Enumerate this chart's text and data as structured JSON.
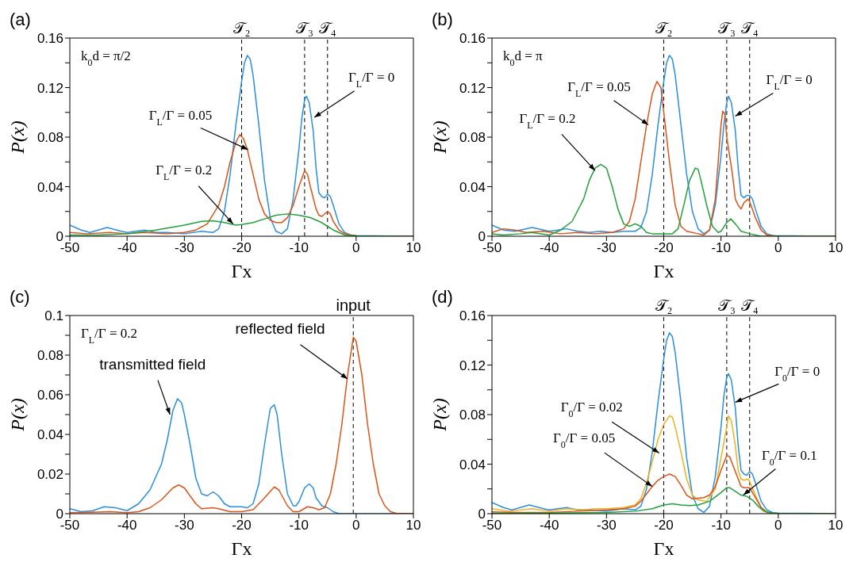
{
  "chart_data": [
    {
      "type": "line",
      "title": "(a)",
      "xlabel": "Γx",
      "ylabel": "P(x)",
      "xlim": [
        -50,
        10
      ],
      "xticks": [
        -50,
        -40,
        -30,
        -20,
        -10,
        0,
        10
      ],
      "ylim": [
        0,
        0.16
      ],
      "yticks": [
        0,
        {
          "value": 0.02,
          "label": null
        },
        0.04,
        {
          "value": 0.06,
          "label": null
        },
        0.08,
        {
          "value": 0.1,
          "label": null
        },
        0.12,
        {
          "value": 0.14,
          "label": null
        },
        0.16
      ],
      "ref_lines": [
        {
          "axis": "x",
          "value": -20,
          "label": "𝒯₂",
          "line_style": "dashed",
          "color": "#000000"
        },
        {
          "axis": "x",
          "value": -9,
          "label": "𝒯₃",
          "line_style": "dashed",
          "color": "#000000"
        },
        {
          "axis": "x",
          "value": -5,
          "label": "𝒯₄",
          "line_style": "dashed",
          "color": "#000000"
        }
      ],
      "annotations": [
        "k$_{0}$d = π/2",
        {
          "text": "Γ$_{L}$/Γ = 0",
          "x": -7.3,
          "y": 0.096
        },
        {
          "text": "Γ$_{L}$/Γ = 0.05",
          "x": -18.9,
          "y": 0.07
        },
        {
          "text": "Γ$_{L}$/Γ = 0.2",
          "x": -21.5,
          "y": 0.01
        }
      ],
      "series": [
        {
          "color": "#2b8ee0",
          "x": [
            -50,
            -48,
            -46.5,
            -43.5,
            -41,
            -40,
            -37,
            -35,
            -33,
            -30,
            -27,
            -25,
            -24,
            -23,
            -22,
            -21,
            -20,
            -19.5,
            -19,
            -18.5,
            -18,
            -17,
            -16,
            -15,
            -14,
            -13,
            -12,
            -11,
            -10,
            -9.5,
            -9,
            -8.7,
            -8.2,
            -7.5,
            -7,
            -6.5,
            -6,
            -5.5,
            -5,
            -4.5,
            -4,
            -3,
            -2,
            -1,
            0,
            10
          ],
          "values": [
            0.009,
            0.005,
            0.003,
            0.007,
            0.004,
            0.003,
            0.005,
            0.003,
            0.003,
            0.002,
            0.004,
            0.003,
            0.006,
            0.02,
            0.05,
            0.09,
            0.125,
            0.14,
            0.146,
            0.143,
            0.13,
            0.09,
            0.045,
            0.015,
            0.004,
            0.002,
            0.006,
            0.03,
            0.07,
            0.095,
            0.11,
            0.113,
            0.108,
            0.085,
            0.055,
            0.035,
            0.032,
            0.031,
            0.034,
            0.032,
            0.025,
            0.01,
            0.003,
            0.001,
            0.0005,
            0
          ]
        },
        {
          "color": "#d9541a",
          "x": [
            -50,
            -47,
            -43,
            -40,
            -37,
            -33,
            -30,
            -28,
            -26,
            -24,
            -23,
            -22,
            -21,
            -20.3,
            -19.7,
            -19,
            -18,
            -17,
            -16,
            -15,
            -14,
            -13,
            -12,
            -11,
            -10,
            -9,
            -8.5,
            -8,
            -7,
            -6.5,
            -6,
            -5,
            -4.5,
            -4,
            -3,
            -2,
            0,
            10
          ],
          "values": [
            0.003,
            0.002,
            0.003,
            0.002,
            0.003,
            0.002,
            0.003,
            0.005,
            0.01,
            0.025,
            0.04,
            0.06,
            0.076,
            0.082,
            0.079,
            0.07,
            0.05,
            0.03,
            0.018,
            0.013,
            0.011,
            0.011,
            0.015,
            0.025,
            0.04,
            0.053,
            0.05,
            0.04,
            0.022,
            0.017,
            0.016,
            0.02,
            0.018,
            0.012,
            0.005,
            0.002,
            0.0003,
            0
          ]
        },
        {
          "color": "#23a03a",
          "x": [
            -50,
            -45,
            -40,
            -35,
            -30,
            -27,
            -25,
            -23,
            -21,
            -20,
            -18,
            -16,
            -14,
            -12,
            -10,
            -8,
            -6,
            -5,
            -4,
            -3,
            -2,
            0,
            10
          ],
          "values": [
            0.001,
            0.001,
            0.002,
            0.005,
            0.009,
            0.012,
            0.0125,
            0.011,
            0.009,
            0.0095,
            0.011,
            0.014,
            0.017,
            0.018,
            0.017,
            0.015,
            0.011,
            0.008,
            0.005,
            0.003,
            0.001,
            0.0003,
            0
          ]
        }
      ]
    },
    {
      "type": "line",
      "title": "(b)",
      "xlabel": "Γx",
      "ylabel": "P(x)",
      "xlim": [
        -50,
        10
      ],
      "xticks": [
        -50,
        -40,
        -30,
        -20,
        -10,
        0,
        10
      ],
      "ylim": [
        0,
        0.16
      ],
      "yticks": [
        0,
        {
          "value": 0.02,
          "label": null
        },
        0.04,
        {
          "value": 0.06,
          "label": null
        },
        0.08,
        {
          "value": 0.1,
          "label": null
        },
        0.12,
        {
          "value": 0.14,
          "label": null
        },
        0.16
      ],
      "ref_lines": [
        {
          "axis": "x",
          "value": -20,
          "label": "𝒯₂",
          "line_style": "dashed",
          "color": "#000000"
        },
        {
          "axis": "x",
          "value": -9,
          "label": "𝒯₃",
          "line_style": "dashed",
          "color": "#000000"
        },
        {
          "axis": "x",
          "value": -5,
          "label": "𝒯₄",
          "line_style": "dashed",
          "color": "#000000"
        }
      ],
      "annotations": [
        "k$_{0}$d = π",
        {
          "text": "Γ$_{L}$/Γ = 0",
          "x": -7.5,
          "y": 0.097
        },
        {
          "text": "Γ$_{L}$/Γ = 0.05",
          "x": -22.7,
          "y": 0.09
        },
        {
          "text": "Γ$_{L}$/Γ = 0.2",
          "x": -32,
          "y": 0.053
        }
      ],
      "series": [
        {
          "color": "#2b8ee0",
          "x": [
            -50,
            -48,
            -46,
            -43,
            -40,
            -37,
            -35,
            -33,
            -31,
            -29,
            -27,
            -25,
            -24,
            -23,
            -22,
            -21,
            -20,
            -19.5,
            -19,
            -18.5,
            -18,
            -17,
            -16,
            -15,
            -14,
            -13,
            -12,
            -11,
            -10,
            -9.5,
            -9,
            -8.7,
            -8.2,
            -7.5,
            -7,
            -6.5,
            -6,
            -5.5,
            -5,
            -4.5,
            -4,
            -3,
            -2,
            -1,
            10
          ],
          "values": [
            0.009,
            0.005,
            0.004,
            0.007,
            0.004,
            0.006,
            0.004,
            0.003,
            0.004,
            0.003,
            0.004,
            0.004,
            0.007,
            0.02,
            0.05,
            0.09,
            0.125,
            0.14,
            0.146,
            0.143,
            0.13,
            0.09,
            0.05,
            0.02,
            0.006,
            0.002,
            0.005,
            0.025,
            0.065,
            0.09,
            0.108,
            0.113,
            0.108,
            0.085,
            0.055,
            0.033,
            0.031,
            0.033,
            0.033,
            0.03,
            0.022,
            0.008,
            0.002,
            0.0005,
            0
          ]
        },
        {
          "color": "#d9541a",
          "x": [
            -50,
            -48,
            -46,
            -44,
            -41,
            -38,
            -35,
            -32,
            -29,
            -27,
            -26,
            -25,
            -24,
            -23,
            -22,
            -21.2,
            -20.5,
            -20,
            -19,
            -18,
            -17,
            -16,
            -14,
            -13,
            -12,
            -11,
            -10.5,
            -10,
            -9.7,
            -9.3,
            -9,
            -8,
            -7.5,
            -7,
            -6.5,
            -6,
            -5.3,
            -5,
            -4,
            -3,
            -2,
            0,
            10
          ],
          "values": [
            0.003,
            0.006,
            0.005,
            0.003,
            0.004,
            0.002,
            0.003,
            0.002,
            0.003,
            0.006,
            0.012,
            0.03,
            0.06,
            0.09,
            0.115,
            0.125,
            0.12,
            0.1,
            0.06,
            0.025,
            0.008,
            0.004,
            0.002,
            0.001,
            0.005,
            0.03,
            0.06,
            0.09,
            0.101,
            0.098,
            0.08,
            0.05,
            0.03,
            0.025,
            0.022,
            0.027,
            0.03,
            0.028,
            0.015,
            0.005,
            0.001,
            0,
            0
          ]
        },
        {
          "color": "#23a03a",
          "x": [
            -50,
            -48,
            -45,
            -43,
            -40,
            -38,
            -36,
            -34,
            -33,
            -32,
            -31,
            -30,
            -29,
            -28,
            -27,
            -26,
            -25,
            -24,
            -23,
            -22,
            -20,
            -18.5,
            -17.5,
            -16.5,
            -15.5,
            -14.5,
            -14,
            -13.5,
            -12.5,
            -11.5,
            -10.5,
            -10,
            -9,
            -8.3,
            -7.5,
            -6.5,
            -5,
            -4,
            -3,
            10
          ],
          "values": [
            0.002,
            0.001,
            0.002,
            0.003,
            0.001,
            0.005,
            0.012,
            0.03,
            0.045,
            0.055,
            0.058,
            0.055,
            0.04,
            0.022,
            0.01,
            0.008,
            0.01,
            0.008,
            0.003,
            0.002,
            0.002,
            0.002,
            0.006,
            0.025,
            0.045,
            0.055,
            0.054,
            0.045,
            0.025,
            0.008,
            0.003,
            0.004,
            0.011,
            0.014,
            0.01,
            0.004,
            0.002,
            0.001,
            0,
            0
          ]
        }
      ]
    },
    {
      "type": "line",
      "title": "(c)",
      "xlabel": "Γx",
      "ylabel": "P(x)",
      "xlim": [
        -50,
        10
      ],
      "xticks": [
        -50,
        -40,
        -30,
        -20,
        -10,
        0,
        10
      ],
      "ylim": [
        0,
        0.1
      ],
      "yticks": [
        0,
        {
          "value": 0.01,
          "label": null
        },
        0.02,
        {
          "value": 0.03,
          "label": null
        },
        0.04,
        {
          "value": 0.05,
          "label": null
        },
        0.06,
        {
          "value": 0.07,
          "label": null
        },
        0.08,
        {
          "value": 0.09,
          "label": null
        },
        0.1
      ],
      "ref_lines": [
        {
          "axis": "x",
          "value": -0.5,
          "label": "input",
          "line_style": "dashed",
          "color": "#000000"
        }
      ],
      "annotations": [
        "Γ$_{L}$/Γ = 0.2",
        {
          "text": "transmitted field",
          "x": -32.5,
          "y": 0.05
        },
        {
          "text": "reflected field",
          "x": -1.5,
          "y": 0.068
        }
      ],
      "series": [
        {
          "color": "#2b8ee0",
          "x": [
            -50,
            -48,
            -46,
            -44,
            -42,
            -40,
            -38,
            -36,
            -34,
            -33,
            -32,
            -31.2,
            -30.5,
            -30,
            -29,
            -28,
            -27,
            -26,
            -25,
            -24,
            -23,
            -22,
            -20,
            -19,
            -18,
            -17,
            -16,
            -15,
            -14.3,
            -13.8,
            -13,
            -12,
            -11,
            -10.5,
            -10,
            -9,
            -8.2,
            -7.5,
            -7,
            -6,
            -5,
            -4,
            -3,
            10
          ],
          "values": [
            0.0025,
            0.001,
            0.0015,
            0.0035,
            0.003,
            0.0015,
            0.005,
            0.012,
            0.025,
            0.037,
            0.052,
            0.058,
            0.056,
            0.05,
            0.035,
            0.018,
            0.01,
            0.009,
            0.011,
            0.009,
            0.005,
            0.0035,
            0.0035,
            0.003,
            0.005,
            0.015,
            0.035,
            0.053,
            0.055,
            0.05,
            0.03,
            0.01,
            0.004,
            0.004,
            0.006,
            0.013,
            0.015,
            0.013,
            0.008,
            0.004,
            0.003,
            0.001,
            0,
            0
          ]
        },
        {
          "color": "#d9541a",
          "x": [
            -50,
            -45,
            -43,
            -40,
            -38,
            -36,
            -34,
            -32,
            -31,
            -30,
            -29,
            -28,
            -27,
            -25,
            -24,
            -22,
            -20,
            -18,
            -16,
            -14.3,
            -13.5,
            -12,
            -11,
            -10,
            -8.5,
            -7.5,
            -6.5,
            -5.5,
            -4.5,
            -3.5,
            -2.5,
            -1.5,
            -0.5,
            0,
            1,
            2,
            3,
            4,
            5,
            6,
            7,
            10
          ],
          "values": [
            0.0005,
            0.0008,
            0.001,
            0.0005,
            0.001,
            0.003,
            0.007,
            0.013,
            0.0145,
            0.013,
            0.009,
            0.005,
            0.0025,
            0.003,
            0.0025,
            0.001,
            0.001,
            0.002,
            0.008,
            0.0135,
            0.012,
            0.004,
            0.001,
            0.001,
            0.0035,
            0.003,
            0.002,
            0.003,
            0.01,
            0.025,
            0.045,
            0.07,
            0.089,
            0.087,
            0.07,
            0.045,
            0.025,
            0.01,
            0.004,
            0.001,
            0.0002,
            0
          ]
        }
      ]
    },
    {
      "type": "line",
      "title": "(d)",
      "xlabel": "Γx",
      "ylabel": "P(x)",
      "xlim": [
        -50,
        10
      ],
      "xticks": [
        -50,
        -40,
        -30,
        -20,
        -10,
        0,
        10
      ],
      "ylim": [
        0,
        0.16
      ],
      "yticks": [
        0,
        {
          "value": 0.02,
          "label": null
        },
        0.04,
        {
          "value": 0.06,
          "label": null
        },
        0.08,
        {
          "value": 0.1,
          "label": null
        },
        0.12,
        {
          "value": 0.14,
          "label": null
        },
        0.16
      ],
      "ref_lines": [
        {
          "axis": "x",
          "value": -20,
          "label": "𝒯₂",
          "line_style": "dashed",
          "color": "#000000"
        },
        {
          "axis": "x",
          "value": -9,
          "label": "𝒯₃",
          "line_style": "dashed",
          "color": "#000000"
        },
        {
          "axis": "x",
          "value": -5,
          "label": "𝒯₄",
          "line_style": "dashed",
          "color": "#000000"
        }
      ],
      "annotations": [
        {
          "text": "Γ$_{0}$/Γ = 0",
          "x": -7.5,
          "y": 0.09
        },
        {
          "text": "Γ$_{0}$/Γ = 0.02",
          "x": -20.8,
          "y": 0.049
        },
        {
          "text": "Γ$_{0}$/Γ = 0.05",
          "x": -22,
          "y": 0.022
        },
        {
          "text": "Γ$_{0}$/Γ = 0.1",
          "x": -6.1,
          "y": 0.015
        }
      ],
      "series": [
        {
          "color": "#2b8ee0",
          "x": [
            -50,
            -48,
            -46.5,
            -43.5,
            -41,
            -40,
            -37,
            -35,
            -33,
            -30,
            -27,
            -25,
            -24,
            -23,
            -22,
            -21,
            -20,
            -19.5,
            -19,
            -18.5,
            -18,
            -17,
            -16,
            -15,
            -14,
            -13,
            -12,
            -11,
            -10,
            -9.5,
            -9,
            -8.7,
            -8.2,
            -7.5,
            -7,
            -6.5,
            -6,
            -5.5,
            -5,
            -4.5,
            -4,
            -3,
            -2,
            -1,
            0,
            10
          ],
          "values": [
            0.009,
            0.005,
            0.003,
            0.007,
            0.004,
            0.003,
            0.005,
            0.003,
            0.003,
            0.002,
            0.004,
            0.003,
            0.006,
            0.02,
            0.05,
            0.09,
            0.125,
            0.14,
            0.146,
            0.143,
            0.13,
            0.09,
            0.045,
            0.015,
            0.004,
            0.001,
            0.006,
            0.03,
            0.07,
            0.095,
            0.11,
            0.113,
            0.108,
            0.085,
            0.055,
            0.035,
            0.032,
            0.031,
            0.034,
            0.032,
            0.025,
            0.01,
            0.003,
            0.001,
            0.0005,
            0
          ]
        },
        {
          "color": "#edb120",
          "x": [
            -50,
            -47,
            -43,
            -40,
            -37,
            -34,
            -32,
            -30,
            -27,
            -25,
            -24,
            -23,
            -22,
            -21,
            -20,
            -19,
            -18.5,
            -18,
            -17,
            -16,
            -15,
            -14,
            -12.5,
            -11,
            -10,
            -9,
            -8.7,
            -8.2,
            -7.5,
            -7,
            -6.5,
            -6,
            -5.3,
            -5,
            -4,
            -3,
            -2,
            0,
            10
          ],
          "values": [
            0.004,
            0.002,
            0.004,
            0.002,
            0.004,
            0.003,
            0.004,
            0.004,
            0.005,
            0.007,
            0.012,
            0.025,
            0.042,
            0.06,
            0.072,
            0.079,
            0.078,
            0.07,
            0.05,
            0.028,
            0.015,
            0.011,
            0.01,
            0.02,
            0.045,
            0.07,
            0.079,
            0.075,
            0.055,
            0.035,
            0.028,
            0.027,
            0.028,
            0.026,
            0.015,
            0.005,
            0.001,
            0,
            0
          ]
        },
        {
          "color": "#d9541a",
          "x": [
            -50,
            -45,
            -40,
            -35,
            -30,
            -27,
            -25,
            -24,
            -23,
            -22,
            -21,
            -20,
            -19,
            -18,
            -17,
            -16,
            -15,
            -13,
            -12,
            -11,
            -10,
            -9,
            -8.5,
            -8,
            -7,
            -6.5,
            -6,
            -5,
            -4,
            -3,
            -2,
            0,
            10
          ],
          "values": [
            0.0015,
            0.001,
            0.001,
            0.002,
            0.003,
            0.004,
            0.006,
            0.01,
            0.016,
            0.022,
            0.027,
            0.03,
            0.032,
            0.03,
            0.023,
            0.015,
            0.012,
            0.013,
            0.015,
            0.022,
            0.035,
            0.047,
            0.046,
            0.04,
            0.028,
            0.022,
            0.021,
            0.021,
            0.013,
            0.005,
            0.001,
            0,
            0
          ]
        },
        {
          "color": "#23a03a",
          "x": [
            -50,
            -40,
            -30,
            -25,
            -22,
            -20,
            -18.5,
            -17,
            -15.5,
            -14,
            -12,
            -10,
            -9,
            -8.5,
            -7.5,
            -6.5,
            -5.5,
            -4.5,
            -3.5,
            -2.5,
            -1,
            0,
            10
          ],
          "values": [
            0.0003,
            0.0005,
            0.001,
            0.002,
            0.004,
            0.007,
            0.008,
            0.007,
            0.0065,
            0.007,
            0.01,
            0.017,
            0.021,
            0.021,
            0.018,
            0.015,
            0.014,
            0.011,
            0.006,
            0.002,
            0.0005,
            0,
            0
          ]
        }
      ]
    }
  ]
}
